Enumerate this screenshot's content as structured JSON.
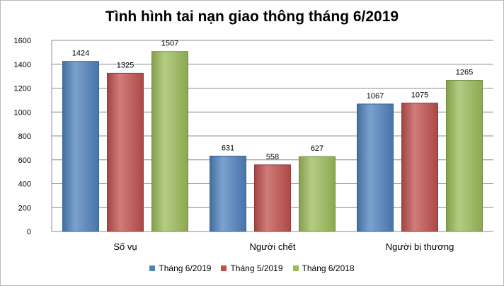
{
  "chart_data": {
    "type": "bar",
    "title": "Tình hình tai nạn giao thông tháng 6/2019",
    "xlabel": "",
    "ylabel": "",
    "ylim": [
      0,
      1600
    ],
    "yticks": [
      0,
      200,
      400,
      600,
      800,
      1000,
      1200,
      1400,
      1600
    ],
    "grid": true,
    "legend_position": "bottom",
    "categories": [
      "Số vụ",
      "Người chết",
      "Người bị thương"
    ],
    "series": [
      {
        "name": "Tháng 6/2019",
        "color": "#4f81bd",
        "values": [
          1424,
          631,
          1067
        ]
      },
      {
        "name": "Tháng 5/2019",
        "color": "#c0504d",
        "values": [
          1325,
          558,
          1075
        ]
      },
      {
        "name": "Tháng 6/2018",
        "color": "#9bbb59",
        "values": [
          1507,
          627,
          1265
        ]
      }
    ]
  }
}
